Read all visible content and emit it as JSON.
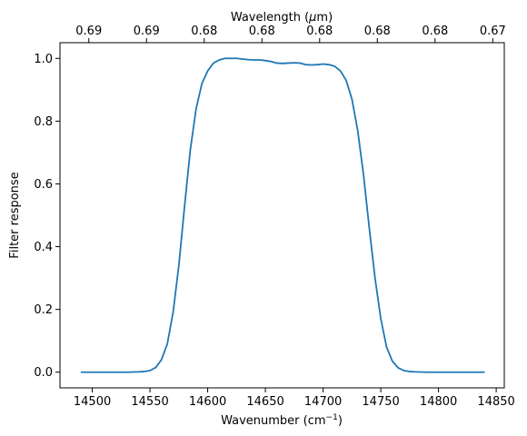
{
  "chart_data": {
    "type": "line",
    "title": "",
    "xlabel": "Wavenumber (cm",
    "xlabel_sup": "−1",
    "xlabel_tail": ")",
    "ylabel": "Filter response",
    "top_xlabel": "Wavelength (",
    "top_xlabel_mu": "μ",
    "top_xlabel_tail": "m)",
    "xlim": [
      14472,
      14857
    ],
    "ylim": [
      -0.05,
      1.05
    ],
    "grid": false,
    "legend": "none",
    "xticks": [
      14500,
      14550,
      14600,
      14650,
      14700,
      14750,
      14800,
      14850
    ],
    "xtick_labels": [
      "14500",
      "14550",
      "14600",
      "14650",
      "14700",
      "14750",
      "14800",
      "14850"
    ],
    "yticks": [
      0.0,
      0.2,
      0.4,
      0.6,
      0.8,
      1.0
    ],
    "ytick_labels": [
      "0.0",
      "0.2",
      "0.4",
      "0.6",
      "0.8",
      "1.0"
    ],
    "top_ticks": [
      14497,
      14547,
      14597,
      14647,
      14697,
      14747,
      14797,
      14847
    ],
    "top_tick_labels": [
      "0.69",
      "0.69",
      "0.68",
      "0.68",
      "0.68",
      "0.68",
      "0.68",
      "0.67"
    ],
    "series": [
      {
        "color": "#1f77b4",
        "x": [
          14490,
          14500,
          14510,
          14520,
          14530,
          14540,
          14545,
          14550,
          14555,
          14560,
          14565,
          14570,
          14575,
          14580,
          14585,
          14590,
          14595,
          14600,
          14605,
          14610,
          14615,
          14620,
          14625,
          14630,
          14635,
          14640,
          14645,
          14650,
          14655,
          14660,
          14665,
          14670,
          14675,
          14680,
          14685,
          14690,
          14695,
          14700,
          14705,
          14710,
          14715,
          14720,
          14725,
          14730,
          14735,
          14740,
          14745,
          14750,
          14755,
          14760,
          14765,
          14770,
          14775,
          14780,
          14790,
          14800,
          14810,
          14820,
          14830,
          14840
        ],
        "y": [
          0.0,
          0.0,
          0.0,
          0.0,
          0.0,
          0.001,
          0.002,
          0.005,
          0.015,
          0.04,
          0.09,
          0.19,
          0.34,
          0.53,
          0.71,
          0.84,
          0.92,
          0.96,
          0.985,
          0.995,
          1.0,
          1.0,
          1.0,
          0.998,
          0.996,
          0.995,
          0.995,
          0.993,
          0.99,
          0.985,
          0.984,
          0.985,
          0.986,
          0.985,
          0.98,
          0.979,
          0.98,
          0.982,
          0.98,
          0.975,
          0.96,
          0.93,
          0.87,
          0.77,
          0.63,
          0.46,
          0.3,
          0.17,
          0.08,
          0.035,
          0.014,
          0.005,
          0.002,
          0.001,
          0.0,
          0.0,
          0.0,
          0.0,
          0.0,
          0.0
        ]
      }
    ]
  }
}
